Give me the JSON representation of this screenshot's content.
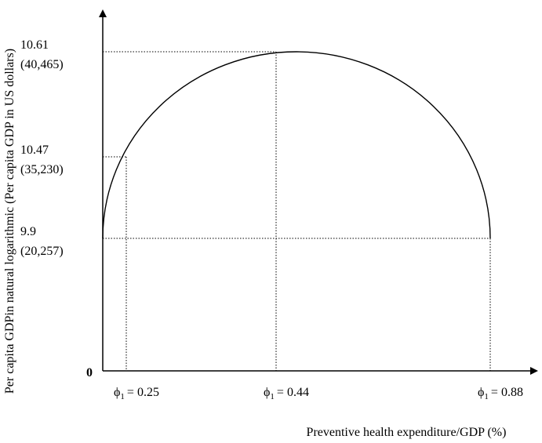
{
  "chart_data": {
    "type": "line",
    "title": "",
    "xlabel": "Preventive health expenditure/GDP (%)",
    "ylabel": "Per capita GDPin natural logarithmic (Per capita GDP in US dollars)",
    "origin_label": "0",
    "grid": false,
    "xlim": [
      0,
      0.95
    ],
    "ylim": [
      0,
      10.95
    ],
    "x_ticks": [
      {
        "value": 0.25,
        "symbol": "ϕ",
        "subscript": "1",
        "text": "= 0.25"
      },
      {
        "value": 0.44,
        "symbol": "ϕ",
        "subscript": "1",
        "text": "= 0.44"
      },
      {
        "value": 0.88,
        "symbol": "ϕ",
        "subscript": "1",
        "text": "= 0.88"
      }
    ],
    "y_ticks": [
      {
        "value": 10.61,
        "label": "10.61",
        "sublabel": "(40,465)"
      },
      {
        "value": 10.47,
        "label": "10.47",
        "sublabel": "(35,230)"
      },
      {
        "value": 9.9,
        "label": "9.9",
        "sublabel": "(20,257)"
      }
    ],
    "series": [
      {
        "points": [
          {
            "x": 0.0,
            "y": 9.9
          },
          {
            "x": 0.03,
            "y": 10.2
          },
          {
            "x": 0.06,
            "y": 10.34
          },
          {
            "x": 0.1,
            "y": 10.42
          },
          {
            "x": 0.15,
            "y": 10.49
          },
          {
            "x": 0.2,
            "y": 10.54
          },
          {
            "x": 0.25,
            "y": 10.57
          },
          {
            "x": 0.3,
            "y": 10.59
          },
          {
            "x": 0.35,
            "y": 10.605
          },
          {
            "x": 0.44,
            "y": 10.61
          },
          {
            "x": 0.5,
            "y": 10.605
          },
          {
            "x": 0.55,
            "y": 10.59
          },
          {
            "x": 0.6,
            "y": 10.57
          },
          {
            "x": 0.65,
            "y": 10.53
          },
          {
            "x": 0.7,
            "y": 10.48
          },
          {
            "x": 0.75,
            "y": 10.41
          },
          {
            "x": 0.8,
            "y": 10.31
          },
          {
            "x": 0.84,
            "y": 10.2
          },
          {
            "x": 0.87,
            "y": 10.05
          },
          {
            "x": 0.88,
            "y": 9.9
          }
        ]
      }
    ],
    "reference_lines": [
      {
        "from": [
          0,
          10.61
        ],
        "to": [
          0.44,
          10.61
        ]
      },
      {
        "from": [
          0.44,
          10.61
        ],
        "to": [
          0.44,
          0
        ]
      },
      {
        "from": [
          0,
          10.47
        ],
        "to": [
          0.05,
          10.47
        ]
      },
      {
        "from": [
          0.05,
          10.47
        ],
        "to": [
          0.05,
          0
        ]
      },
      {
        "from": [
          0,
          9.9
        ],
        "to": [
          0.88,
          9.9
        ]
      },
      {
        "from": [
          0.88,
          9.9
        ],
        "to": [
          0.88,
          0
        ]
      }
    ]
  }
}
